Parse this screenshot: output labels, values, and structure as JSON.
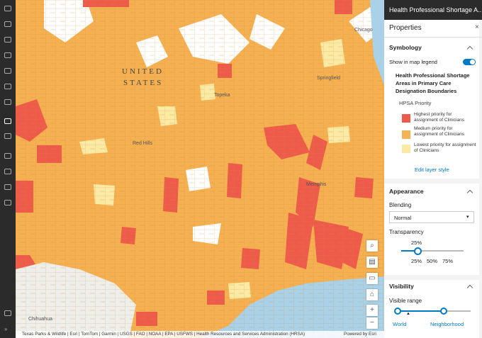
{
  "map": {
    "labels": [
      "UNITED",
      "STATES",
      "Topeka",
      "Springfield",
      "Chicago",
      "Red Hills",
      "Chihuahua",
      "Memphis"
    ],
    "attribution": "Texas Parks & Wildlife | Esri | TomTom | Garmin | USGS | FAO | NOAA | EPA | USFWS | Health Resources and Services Administration (HRSA)",
    "powered_by": "Powered by Esri"
  },
  "panel": {
    "layer_title": "Health Professional Shortage A...",
    "title": "Properties",
    "symbology": {
      "heading": "Symbology",
      "show_legend": "Show in map legend",
      "layer_name": "Health Professional Shortage Areas in Primary Care Designation Boundaries",
      "field": "HPSA Priority",
      "classes": [
        {
          "label": "Highest priority for assignment of Clinicians",
          "color": "#ee5b4a"
        },
        {
          "label": "Medium priority for assignment of Clinicians",
          "color": "#f6b355"
        },
        {
          "label": "Lowest priority for assignment of Clinicians",
          "color": "#fbeaa3"
        }
      ],
      "edit": "Edit layer style"
    },
    "appearance": {
      "heading": "Appearance",
      "blending_label": "Blending",
      "blending_value": "Normal",
      "transparency_label": "Transparency",
      "transparency_value": "25%",
      "ticks": [
        "25%",
        "50%",
        "75%"
      ]
    },
    "visibility": {
      "heading": "Visibility",
      "range_label": "Visible range",
      "min": "World",
      "max": "Neighborhood"
    }
  }
}
